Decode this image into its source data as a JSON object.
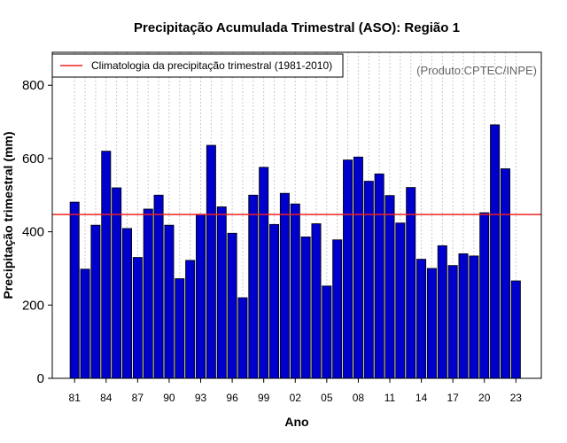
{
  "chart_data": {
    "type": "bar",
    "title": "Precipitação Acumulada Trimestral (ASO): Região 1",
    "xlabel": "Ano",
    "ylabel": "Precipitação trimestral (mm)",
    "credit": "(Produto:CPTEC/INPE)",
    "ylim": [
      0,
      890
    ],
    "yticks": [
      "0",
      "200",
      "400",
      "600",
      "800"
    ],
    "ytick_values": [
      0,
      200,
      400,
      600,
      800
    ],
    "xtick_labels": [
      "81",
      "84",
      "87",
      "90",
      "93",
      "96",
      "99",
      "02",
      "05",
      "08",
      "11",
      "14",
      "17",
      "20",
      "23"
    ],
    "xtick_years": [
      1981,
      1984,
      1987,
      1990,
      1993,
      1996,
      1999,
      2002,
      2005,
      2008,
      2011,
      2014,
      2017,
      2020,
      2023
    ],
    "years": [
      1981,
      1982,
      1983,
      1984,
      1985,
      1986,
      1987,
      1988,
      1989,
      1990,
      1991,
      1992,
      1993,
      1994,
      1995,
      1996,
      1997,
      1998,
      1999,
      2000,
      2001,
      2002,
      2003,
      2004,
      2005,
      2006,
      2007,
      2008,
      2009,
      2010,
      2011,
      2012,
      2013,
      2014,
      2015,
      2016,
      2017,
      2018,
      2019,
      2020,
      2021,
      2022,
      2023
    ],
    "values": [
      481,
      298,
      418,
      620,
      520,
      409,
      330,
      462,
      500,
      418,
      272,
      322,
      448,
      636,
      468,
      396,
      220,
      500,
      576,
      420,
      505,
      476,
      386,
      422,
      252,
      378,
      596,
      604,
      538,
      558,
      499,
      424,
      521,
      325,
      300,
      362,
      308,
      340,
      334,
      452,
      692,
      572,
      266
    ],
    "bar_color": "#0000cc",
    "climatology": {
      "label": "Climatologia da precipitação trimestral (1981-2010)",
      "value": 447,
      "color": "#ee2222"
    },
    "legend_position": "top-left",
    "grid": "vertical dotted"
  }
}
